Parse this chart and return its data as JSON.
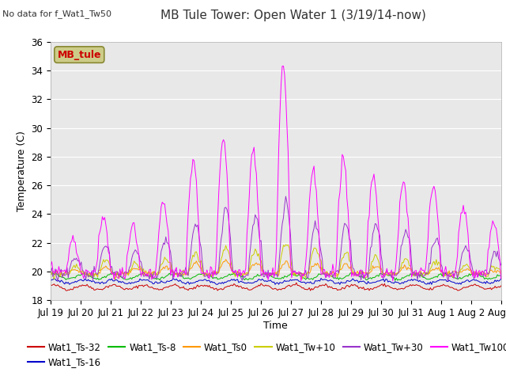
{
  "title": "MB Tule Tower: Open Water 1 (3/19/14-now)",
  "no_data_text": "No data for f_Wat1_Tw50",
  "xlabel": "Time",
  "ylabel": "Temperature (C)",
  "ylim": [
    18,
    36
  ],
  "xtick_labels": [
    "Jul 19",
    "Jul 20",
    "Jul 21",
    "Jul 22",
    "Jul 23",
    "Jul 24",
    "Jul 25",
    "Jul 26",
    "Jul 27",
    "Jul 28",
    "Jul 29",
    "Jul 30",
    "Jul 31",
    "Aug 1",
    "Aug 2",
    "Aug 3"
  ],
  "xtick_positions": [
    0,
    24,
    48,
    72,
    96,
    120,
    144,
    168,
    192,
    216,
    240,
    264,
    288,
    312,
    336,
    360
  ],
  "legend_entries": [
    "Wat1_Ts-32",
    "Wat1_Ts-16",
    "Wat1_Ts-8",
    "Wat1_Ts0",
    "Wat1_Tw+10",
    "Wat1_Tw+30",
    "Wat1_Tw100"
  ],
  "line_colors": [
    "#cc0000",
    "#0000cc",
    "#00bb00",
    "#ff9900",
    "#cccc00",
    "#9933cc",
    "#ff00ff"
  ],
  "site_label": "MB_tule",
  "site_label_color": "#cc0000",
  "site_label_bg": "#cccc88",
  "background_color": "#e8e8e8",
  "grid_color": "#ffffff",
  "fig_bg": "#ffffff",
  "title_fontsize": 11,
  "axis_fontsize": 9,
  "tick_fontsize": 8.5,
  "legend_fontsize": 8.5
}
